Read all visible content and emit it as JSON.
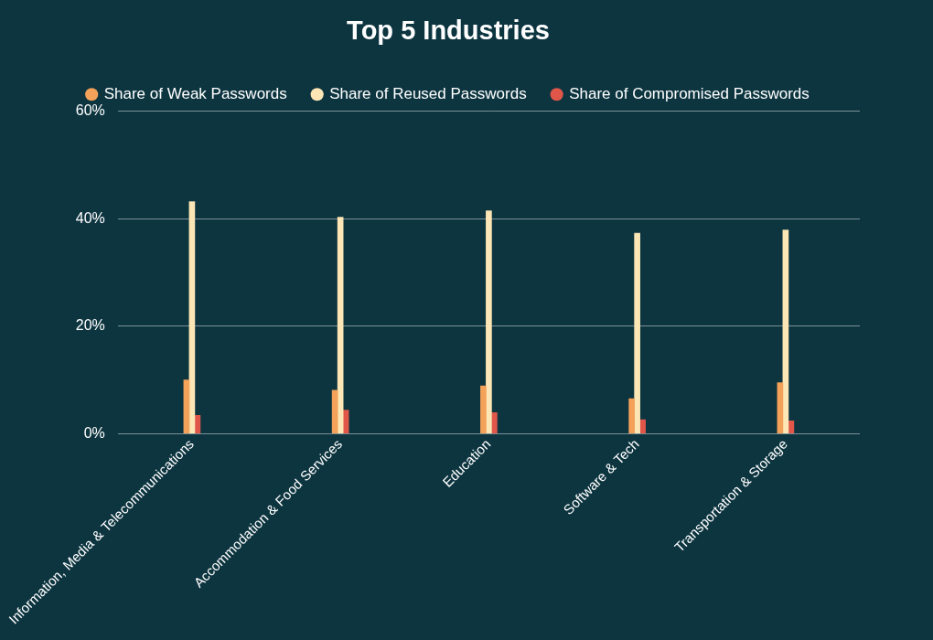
{
  "chart_data": {
    "type": "bar",
    "title": "Top 5 Industries",
    "categories": [
      "Information, Media & Telecommunications",
      "Accommodation & Food Services",
      "Education",
      "Software & Tech",
      "Transportation & Storage"
    ],
    "series": [
      {
        "name": "Share of Weak Passwords",
        "color": "#f4a259",
        "values": [
          10.0,
          8.1,
          8.9,
          6.5,
          9.5
        ]
      },
      {
        "name": "Share of Reused Passwords",
        "color": "#fde6b5",
        "values": [
          43.2,
          40.3,
          41.5,
          37.3,
          37.9
        ]
      },
      {
        "name": "Share of Compromised Passwords",
        "color": "#e0574a",
        "values": [
          3.4,
          4.4,
          3.9,
          2.6,
          2.4
        ]
      }
    ],
    "ylim": [
      0,
      60
    ],
    "yticks": [
      {
        "value": 0,
        "label": "0%"
      },
      {
        "value": 20,
        "label": "20%"
      },
      {
        "value": 40,
        "label": "40%"
      },
      {
        "value": 60,
        "label": "60%"
      }
    ],
    "grid": true,
    "legend": "top"
  }
}
